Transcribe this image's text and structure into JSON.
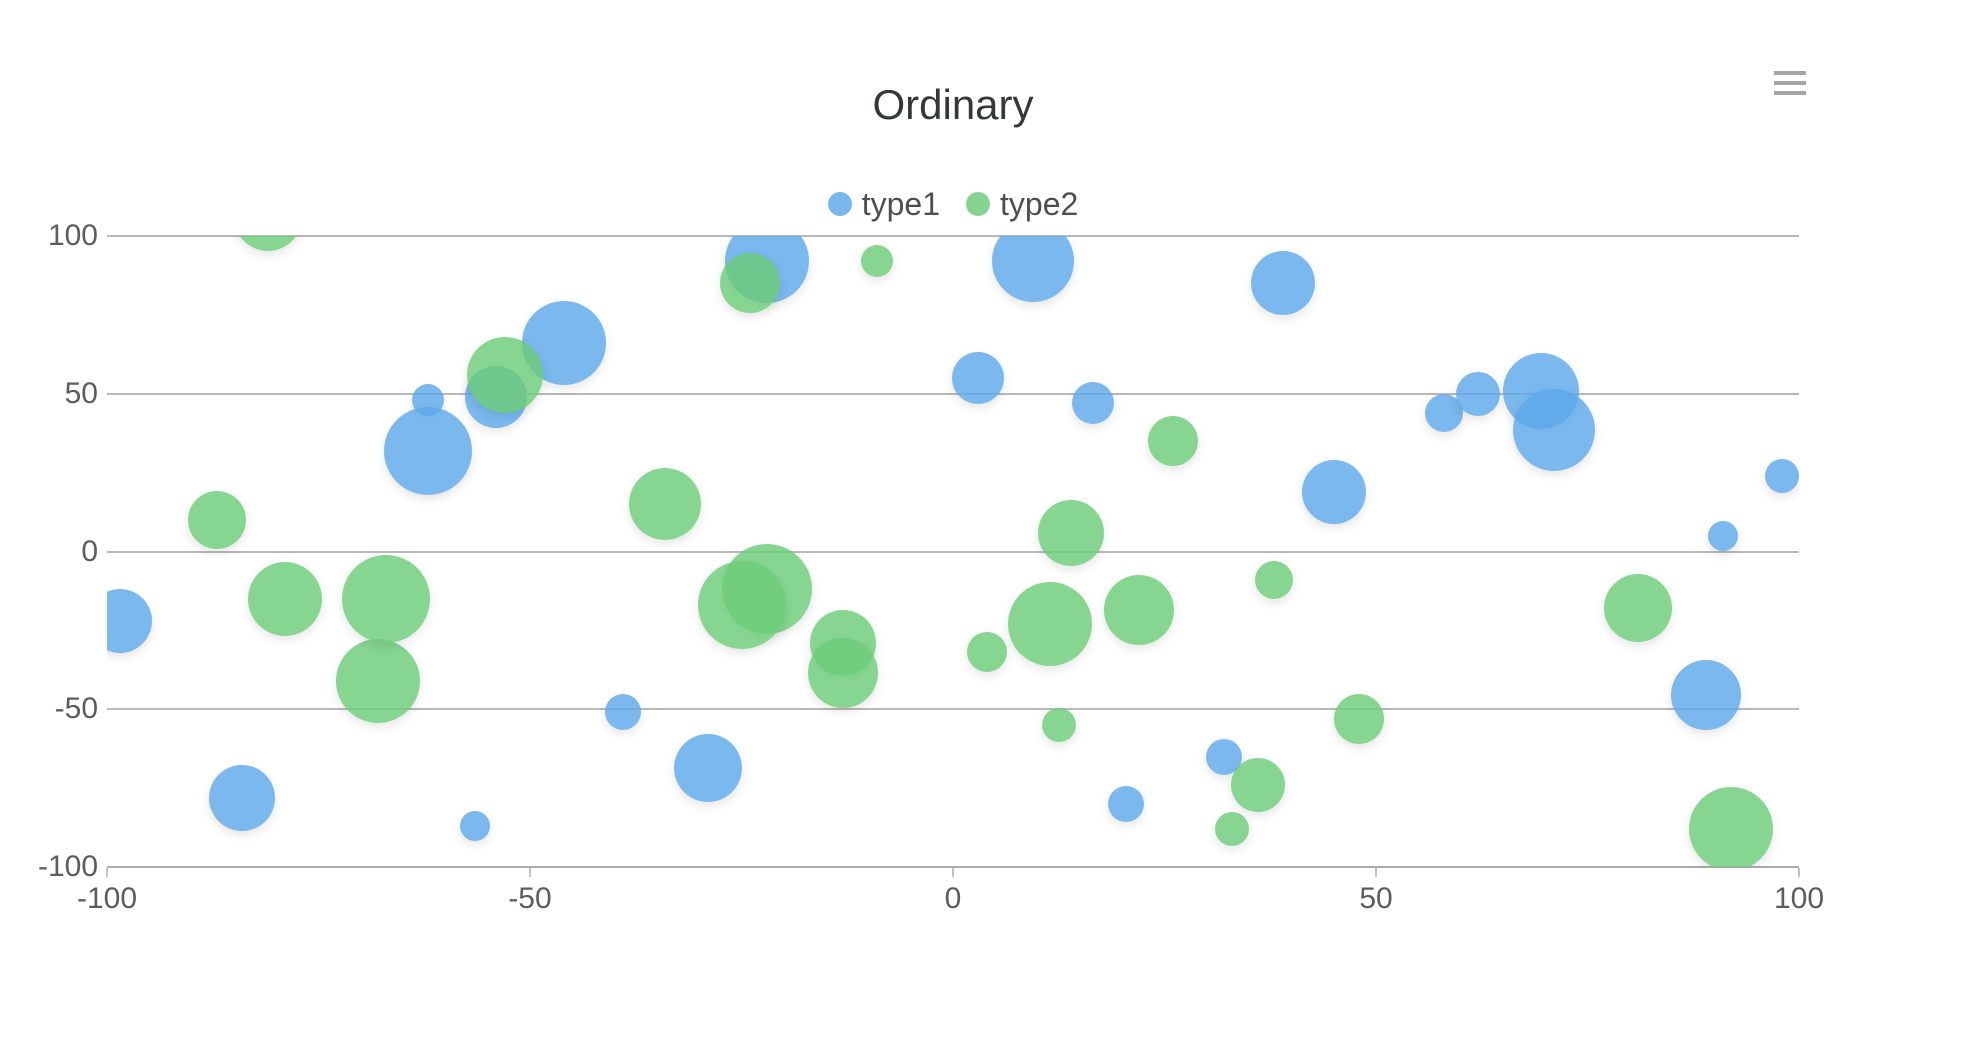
{
  "chart": {
    "icons": {
      "menu": "hamburger-icon"
    }
  },
  "chart_data": {
    "type": "scatter",
    "variant": "bubble",
    "title": "Ordinary",
    "xlabel": "",
    "ylabel": "",
    "xlim": [
      -100,
      100
    ],
    "ylim": [
      -100,
      100
    ],
    "x_ticks": [
      "-100",
      "-50",
      "0",
      "50",
      "100"
    ],
    "y_ticks": [
      "100",
      "50",
      "0",
      "-50",
      "-100"
    ],
    "grid": true,
    "legend_position": "top",
    "series": [
      {
        "name": "type1",
        "color": "#5da8ea",
        "fill_opacity": 0.82,
        "legend_color": "#79b7ed",
        "points": [
          {
            "x": -98.5,
            "y": -22,
            "r": 32
          },
          {
            "x": -84,
            "y": -78,
            "r": 33
          },
          {
            "x": -62,
            "y": 48,
            "r": 16
          },
          {
            "x": -62,
            "y": 32,
            "r": 44
          },
          {
            "x": -56.5,
            "y": -87,
            "r": 15
          },
          {
            "x": -54,
            "y": 49,
            "r": 31
          },
          {
            "x": -46,
            "y": 66,
            "r": 42
          },
          {
            "x": -39,
            "y": -51,
            "r": 18
          },
          {
            "x": -29,
            "y": -68.5,
            "r": 34
          },
          {
            "x": -22,
            "y": 92,
            "r": 42
          },
          {
            "x": 3,
            "y": 55,
            "r": 26
          },
          {
            "x": 9.5,
            "y": 92,
            "r": 41
          },
          {
            "x": 16.5,
            "y": 47,
            "r": 21
          },
          {
            "x": 20.5,
            "y": -80,
            "r": 18
          },
          {
            "x": 32,
            "y": -65,
            "r": 18
          },
          {
            "x": 39,
            "y": 85,
            "r": 32
          },
          {
            "x": 45,
            "y": 19,
            "r": 32
          },
          {
            "x": 58,
            "y": 44,
            "r": 19
          },
          {
            "x": 62,
            "y": 50,
            "r": 22
          },
          {
            "x": 69.5,
            "y": 51,
            "r": 38
          },
          {
            "x": 71,
            "y": 38.5,
            "r": 41
          },
          {
            "x": 89,
            "y": -45.5,
            "r": 35
          },
          {
            "x": 91,
            "y": 5,
            "r": 15
          },
          {
            "x": 98,
            "y": 24,
            "r": 17
          }
        ]
      },
      {
        "name": "type2",
        "color": "#6bcc79",
        "fill_opacity": 0.82,
        "legend_color": "#87d492",
        "points": [
          {
            "x": -87,
            "y": 10,
            "r": 29
          },
          {
            "x": -81,
            "y": 106,
            "r": 34
          },
          {
            "x": -79,
            "y": -15,
            "r": 37
          },
          {
            "x": -68,
            "y": -41,
            "r": 42
          },
          {
            "x": -67,
            "y": -15,
            "r": 44
          },
          {
            "x": -53,
            "y": 56,
            "r": 38
          },
          {
            "x": -34,
            "y": 15,
            "r": 36
          },
          {
            "x": -24,
            "y": 85,
            "r": 30
          },
          {
            "x": -22,
            "y": -12,
            "r": 45
          },
          {
            "x": -25,
            "y": -17,
            "r": 44
          },
          {
            "x": -13,
            "y": -29,
            "r": 33
          },
          {
            "x": -13,
            "y": -38.5,
            "r": 35
          },
          {
            "x": -9,
            "y": 92,
            "r": 16
          },
          {
            "x": 4,
            "y": -32,
            "r": 20
          },
          {
            "x": 11.5,
            "y": -23,
            "r": 42
          },
          {
            "x": 12.5,
            "y": -55,
            "r": 17
          },
          {
            "x": 14,
            "y": 6,
            "r": 33
          },
          {
            "x": 22,
            "y": -18.5,
            "r": 35
          },
          {
            "x": 26,
            "y": 35,
            "r": 25
          },
          {
            "x": 33,
            "y": -88,
            "r": 17
          },
          {
            "x": 36,
            "y": -74,
            "r": 27
          },
          {
            "x": 38,
            "y": -9,
            "r": 19
          },
          {
            "x": 48,
            "y": -53,
            "r": 25
          },
          {
            "x": 81,
            "y": -18,
            "r": 34
          },
          {
            "x": 92,
            "y": -88,
            "r": 42
          }
        ]
      }
    ]
  }
}
